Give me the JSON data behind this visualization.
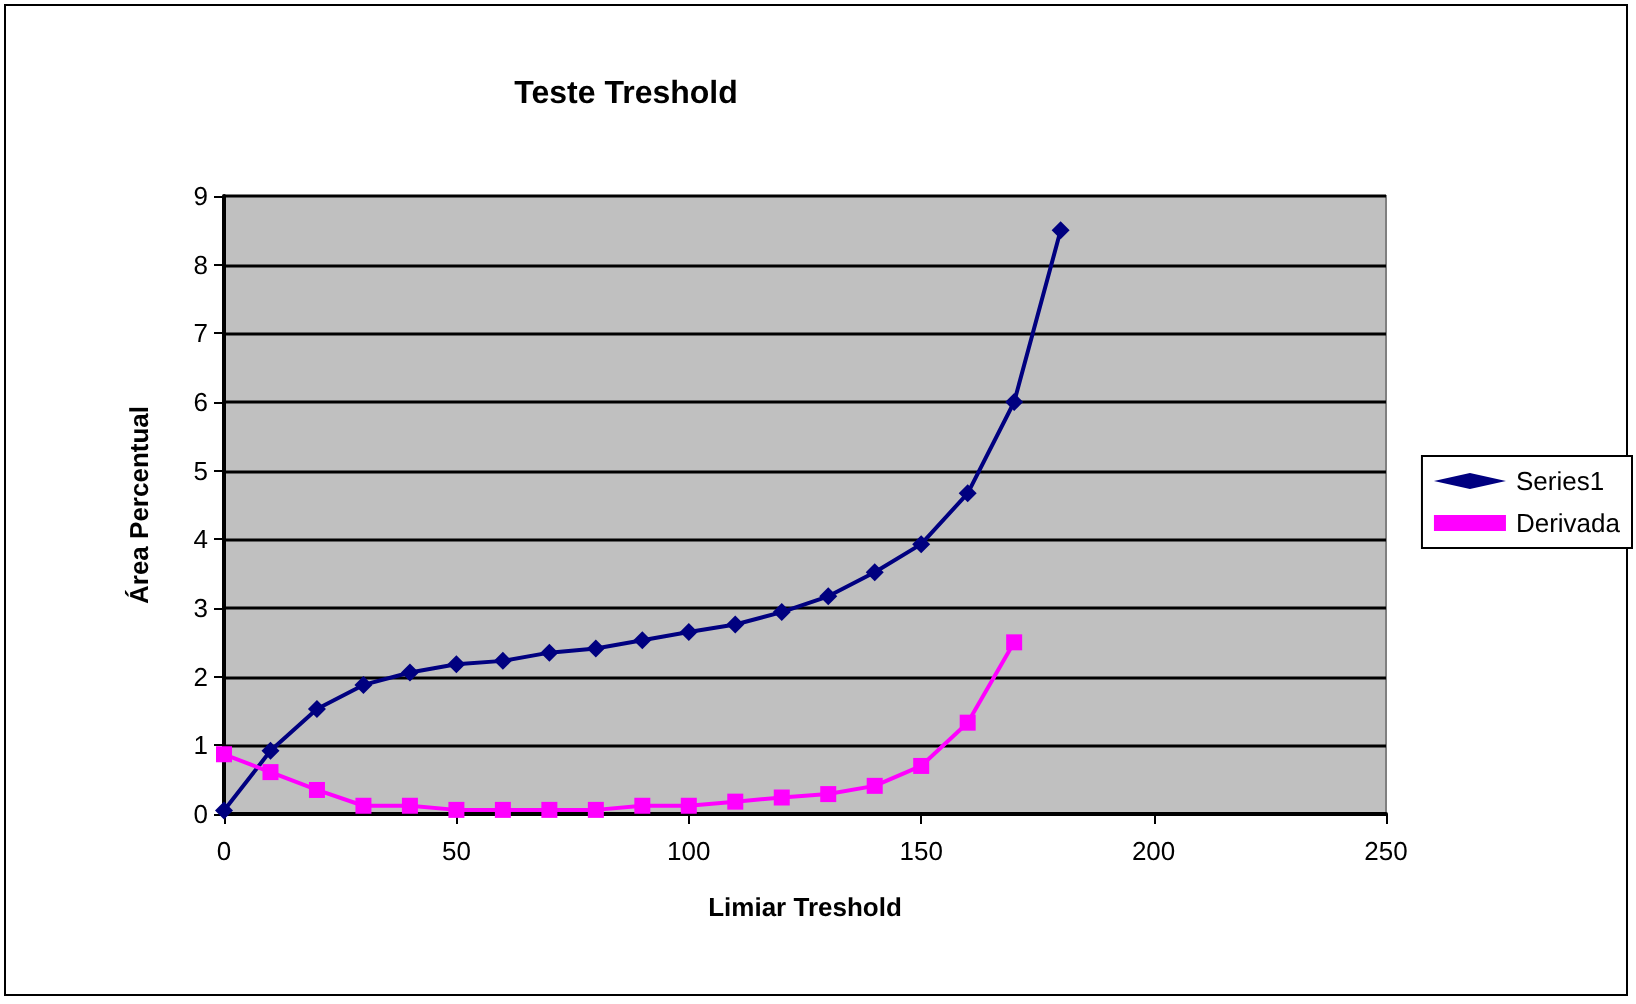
{
  "chart_data": {
    "type": "line",
    "title": "Teste Treshold",
    "xlabel": "Limiar Treshold",
    "ylabel": "Área Percentual",
    "xlim": [
      0,
      250
    ],
    "xticks": [
      0,
      50,
      100,
      150,
      200,
      250
    ],
    "ylim": [
      0,
      9
    ],
    "yticks": [
      0,
      1,
      2,
      3,
      4,
      5,
      6,
      7,
      8,
      9
    ],
    "grid": "y",
    "legend": "right",
    "series": [
      {
        "name": "Series1",
        "color": "#000080",
        "marker": "diamond",
        "x": [
          0,
          10,
          20,
          30,
          40,
          50,
          60,
          70,
          80,
          90,
          100,
          110,
          120,
          130,
          140,
          150,
          160,
          170,
          180
        ],
        "values": [
          0.05,
          0.92,
          1.53,
          1.88,
          2.06,
          2.18,
          2.23,
          2.35,
          2.41,
          2.53,
          2.65,
          2.76,
          2.94,
          3.17,
          3.52,
          3.93,
          4.67,
          6.0,
          8.5
        ]
      },
      {
        "name": "Derivada",
        "color": "#ff00ff",
        "marker": "square",
        "x": [
          0,
          10,
          20,
          30,
          40,
          50,
          60,
          70,
          80,
          90,
          100,
          110,
          120,
          130,
          140,
          150,
          160,
          170
        ],
        "values": [
          0.87,
          0.61,
          0.35,
          0.12,
          0.12,
          0.06,
          0.06,
          0.06,
          0.06,
          0.12,
          0.12,
          0.18,
          0.24,
          0.29,
          0.41,
          0.7,
          1.33,
          2.5
        ]
      }
    ]
  }
}
